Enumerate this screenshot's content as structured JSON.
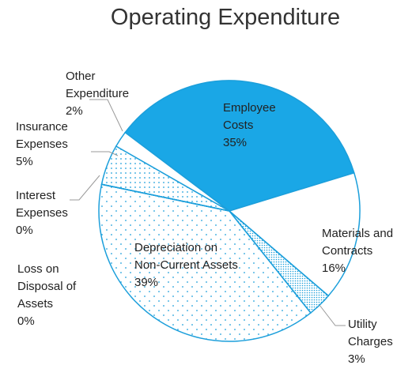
{
  "chart_data": {
    "type": "pie",
    "title": "Operating Expenditure",
    "categories": [
      "Employee Costs",
      "Materials and Contracts",
      "Utility Charges",
      "Depreciation on Non-Current Assets",
      "Loss on Disposal of Assets",
      "Interest Expenses",
      "Insurance Expenses",
      "Other Expenditure"
    ],
    "values": [
      35,
      16,
      3,
      39,
      0,
      0,
      5,
      2
    ],
    "value_labels": [
      "35%",
      "16%",
      "3%",
      "39%",
      "0%",
      "0%",
      "5%",
      "2%"
    ],
    "colors": [
      "#1aa7e6",
      "#ffffff",
      "#ffffff",
      "#ffffff",
      "#ffffff",
      "#ffffff",
      "#ffffff",
      "#ffffff"
    ],
    "fill_styles": [
      "solid",
      "none",
      "dense-dots",
      "sparse-dots",
      "none",
      "none",
      "medium-dots",
      "none"
    ],
    "edge_color": "#1c9fdb"
  }
}
